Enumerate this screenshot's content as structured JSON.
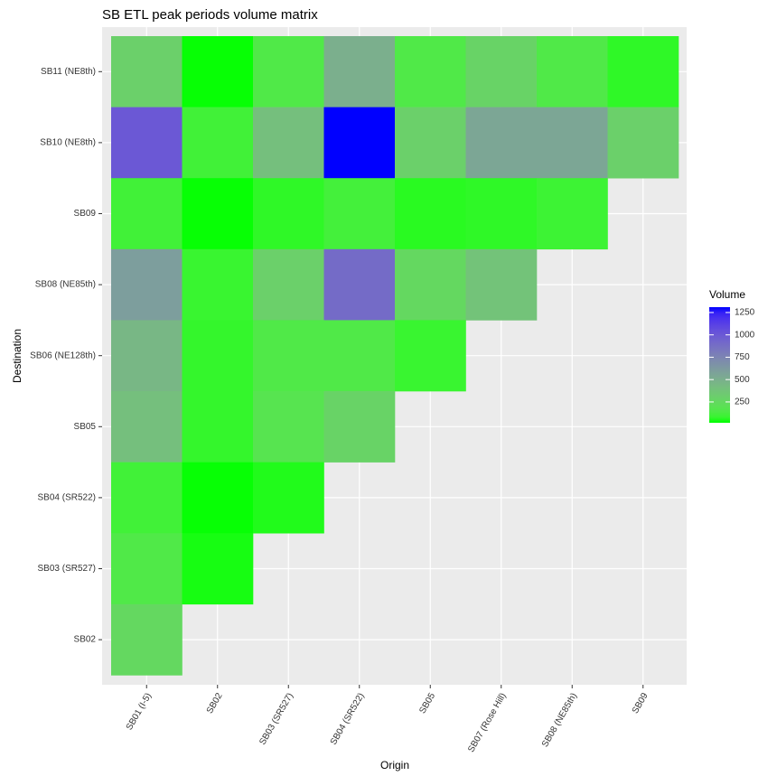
{
  "chart_data": {
    "type": "heatmap",
    "title": "SB ETL peak periods volume matrix",
    "x_label": "Origin",
    "y_label": "Destination",
    "legend_title": "Volume",
    "x_categories": [
      "SB01 (I-5)",
      "SB02",
      "SB03 (SR527)",
      "SB04 (SR522)",
      "SB05",
      "SB07 (Rose Hill)",
      "SB08 (NE85th)",
      "SB09"
    ],
    "y_categories": [
      "SB11 (NE8th)",
      "SB10 (NE8th)",
      "SB09",
      "SB08 (NE85th)",
      "SB06 (NE128th)",
      "SB05",
      "SB04 (SR522)",
      "SB03 (SR527)",
      "SB02"
    ],
    "values": [
      [
        300,
        20,
        150,
        500,
        150,
        280,
        150,
        60
      ],
      [
        1000,
        100,
        400,
        1310,
        300,
        550,
        550,
        300
      ],
      [
        100,
        20,
        60,
        110,
        50,
        60,
        90,
        null
      ],
      [
        600,
        80,
        300,
        900,
        250,
        380,
        null,
        null
      ],
      [
        450,
        70,
        150,
        150,
        80,
        null,
        null,
        null
      ],
      [
        400,
        70,
        180,
        280,
        null,
        null,
        null,
        null
      ],
      [
        100,
        20,
        40,
        null,
        null,
        null,
        null,
        null
      ],
      [
        150,
        30,
        null,
        null,
        null,
        null,
        null,
        null
      ],
      [
        250,
        null,
        null,
        null,
        null,
        null,
        null,
        null
      ]
    ],
    "low_color": "#00ff00",
    "high_color": "#0000ff",
    "zlim": [
      17,
      1310
    ],
    "zticks": [
      250,
      500,
      750,
      1000,
      1250
    ]
  }
}
